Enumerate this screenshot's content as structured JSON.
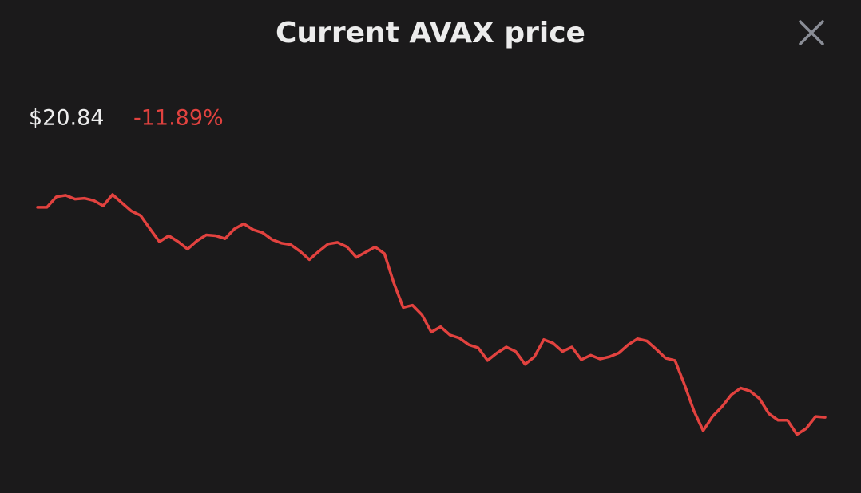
{
  "header": {
    "title": "Current AVAX price"
  },
  "summary": {
    "price": "$20.84",
    "change": "-11.89%"
  },
  "chart_data": {
    "type": "line",
    "color": "#e2423f",
    "ylim": [
      20.2,
      24.3
    ],
    "values": [
      23.65,
      23.65,
      23.79,
      23.81,
      23.76,
      23.77,
      23.74,
      23.67,
      23.82,
      23.71,
      23.6,
      23.54,
      23.36,
      23.19,
      23.27,
      23.19,
      23.09,
      23.2,
      23.28,
      23.27,
      23.23,
      23.36,
      23.43,
      23.35,
      23.31,
      23.22,
      23.17,
      23.15,
      23.06,
      22.95,
      23.06,
      23.16,
      23.18,
      23.12,
      22.98,
      23.05,
      23.12,
      23.03,
      22.64,
      22.31,
      22.34,
      22.21,
      21.98,
      22.05,
      21.94,
      21.9,
      21.81,
      21.77,
      21.6,
      21.7,
      21.78,
      21.72,
      21.55,
      21.65,
      21.88,
      21.83,
      21.72,
      21.78,
      21.61,
      21.67,
      21.62,
      21.65,
      21.7,
      21.81,
      21.89,
      21.86,
      21.75,
      21.63,
      21.6,
      21.28,
      20.93,
      20.66,
      20.85,
      20.98,
      21.14,
      21.23,
      21.19,
      21.09,
      20.89,
      20.8,
      20.8,
      20.61,
      20.69,
      20.85,
      20.84
    ]
  }
}
